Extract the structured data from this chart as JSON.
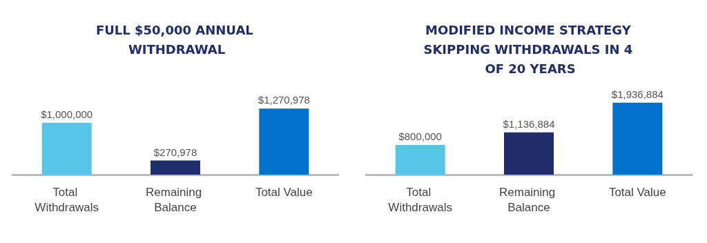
{
  "chart_data": [
    {
      "type": "bar",
      "title": "FULL $50,000 ANNUAL WITHDRAWAL",
      "categories": [
        "Total Withdrawals",
        "Remaining Balance",
        "Total Value"
      ],
      "values": [
        1000000,
        270978,
        1270978
      ],
      "colors": [
        "#56c5e8",
        "#1f2d6b",
        "#0072ce"
      ],
      "value_labels": [
        "$1,000,000",
        "$270,978",
        "$1,270,978"
      ],
      "tick_labels": "x"
    },
    {
      "type": "bar",
      "title": "MODIFIED INCOME STRATEGY SKIPPING WITHDRAWALS IN 4 OF 20 YEARS",
      "categories": [
        "Total Withdrawals",
        "Remaining Balance",
        "Total Value"
      ],
      "values": [
        800000,
        1136884,
        1936884
      ],
      "colors": [
        "#56c5e8",
        "#1f2d6b",
        "#0072ce"
      ],
      "value_labels": [
        "$800,000",
        "$1,136,884",
        "$1,936,884"
      ],
      "tick_labels": "x"
    }
  ]
}
